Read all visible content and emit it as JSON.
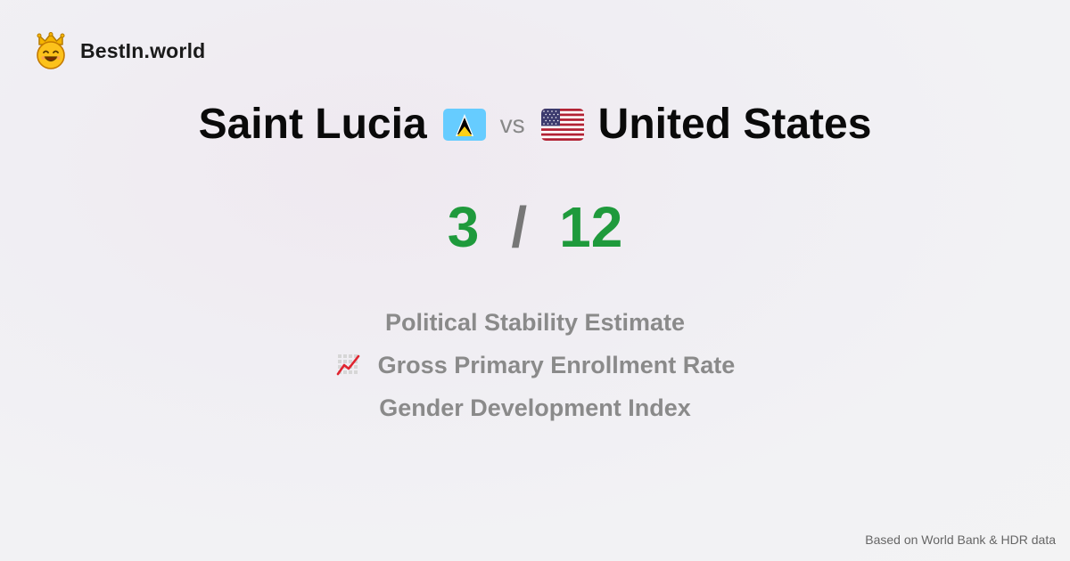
{
  "brand": {
    "name": "BestIn.world",
    "icon": "crown-smiley-icon"
  },
  "comparison": {
    "country_a": {
      "name": "Saint Lucia",
      "flag": "saint-lucia-flag-icon"
    },
    "vs_label": "vs",
    "country_b": {
      "name": "United States",
      "flag": "united-states-flag-icon"
    }
  },
  "score": {
    "a": "3",
    "separator": "/",
    "b": "12"
  },
  "metrics": [
    {
      "label": "Political Stability Estimate"
    },
    {
      "label": "Gross Primary Enrollment Rate",
      "icon": "chart-increasing-icon"
    },
    {
      "label": "Gender Development Index"
    }
  ],
  "footer": {
    "text": "Based on World Bank & HDR data"
  },
  "colors": {
    "score": "#1f9a3c",
    "metric_text": "#8a8a8a",
    "title": "#0a0a0a"
  }
}
